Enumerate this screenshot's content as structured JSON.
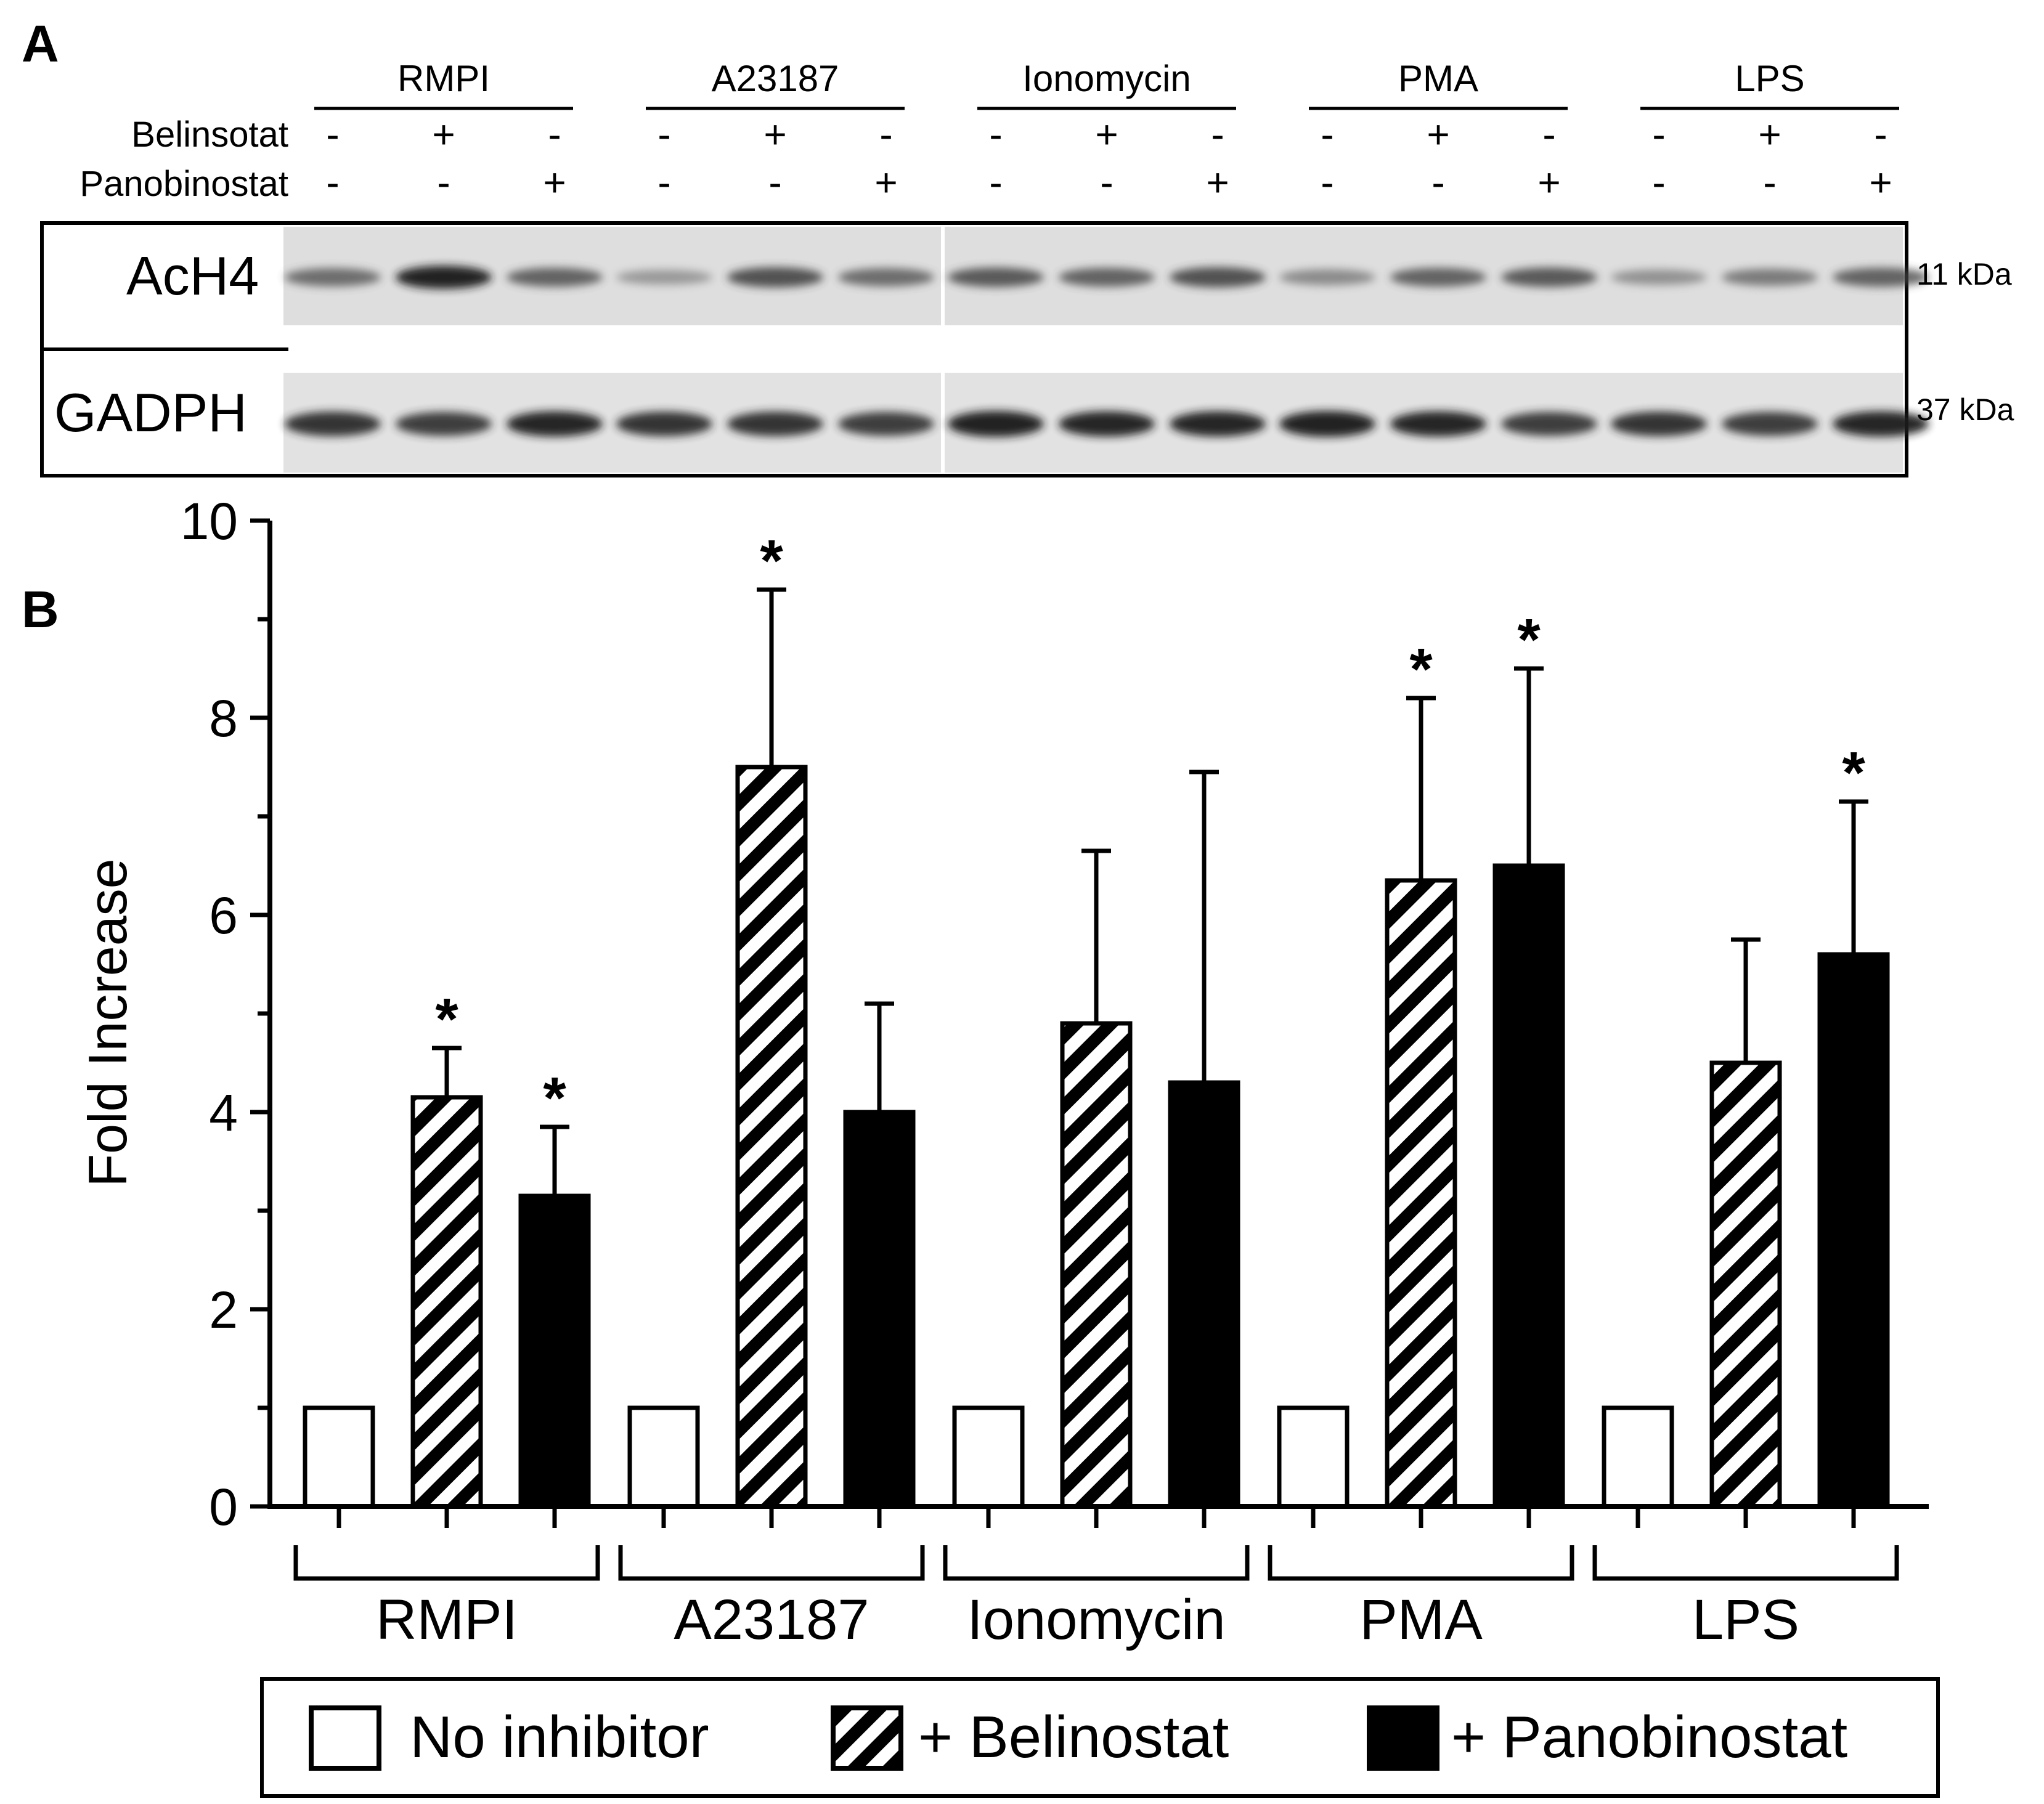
{
  "panel_a": {
    "label": "A",
    "treatments": [
      "RMPI",
      "A23187",
      "Ionomycin",
      "PMA",
      "LPS"
    ],
    "row_labels": {
      "belinostat": "Belinsotat",
      "panobinostat": "Panobinostat"
    },
    "belinostat_signs": [
      "-",
      "+",
      "-"
    ],
    "panobinostat_signs": [
      "-",
      "-",
      "+"
    ],
    "blots": [
      {
        "name": "AcH4",
        "size": "11 kDa"
      },
      {
        "name": "GADPH",
        "size": "37 kDa"
      }
    ],
    "band_intensity": {
      "AcH4": [
        0.55,
        0.95,
        0.6,
        0.25,
        0.7,
        0.55,
        0.65,
        0.6,
        0.7,
        0.35,
        0.6,
        0.65,
        0.3,
        0.45,
        0.6
      ],
      "GADPH": [
        0.85,
        0.8,
        0.9,
        0.85,
        0.85,
        0.8,
        0.95,
        0.9,
        0.9,
        0.95,
        0.9,
        0.8,
        0.85,
        0.8,
        0.9
      ]
    }
  },
  "panel_b": {
    "label": "B"
  },
  "chart_data": {
    "type": "bar",
    "title": "",
    "xlabel": "",
    "ylabel": "Fold Increase",
    "ylim": [
      0,
      10
    ],
    "yticks": [
      0,
      2,
      4,
      6,
      8,
      10
    ],
    "categories": [
      "RMPI",
      "A23187",
      "Ionomycin",
      "PMA",
      "LPS"
    ],
    "series": [
      {
        "name": "No inhibitor",
        "pattern": "white",
        "values": [
          1,
          1,
          1,
          1,
          1
        ],
        "errors": [
          0,
          0,
          0,
          0,
          0
        ],
        "significant": [
          false,
          false,
          false,
          false,
          false
        ]
      },
      {
        "name": "+ Belinostat",
        "pattern": "hatched",
        "values": [
          4.15,
          7.5,
          4.9,
          6.35,
          4.5
        ],
        "errors": [
          0.5,
          1.8,
          1.75,
          1.85,
          1.25
        ],
        "significant": [
          true,
          true,
          false,
          true,
          false
        ]
      },
      {
        "name": "+ Panobinostat",
        "pattern": "black",
        "values": [
          3.15,
          4.0,
          4.3,
          6.5,
          5.6
        ],
        "errors": [
          0.7,
          1.1,
          3.15,
          2.0,
          1.55
        ],
        "significant": [
          true,
          false,
          false,
          true,
          true
        ]
      }
    ],
    "significance_marker": "*",
    "legend": {
      "position": "bottom",
      "entries": [
        "No inhibitor",
        "+ Belinostat",
        "+ Panobinostat"
      ]
    }
  }
}
